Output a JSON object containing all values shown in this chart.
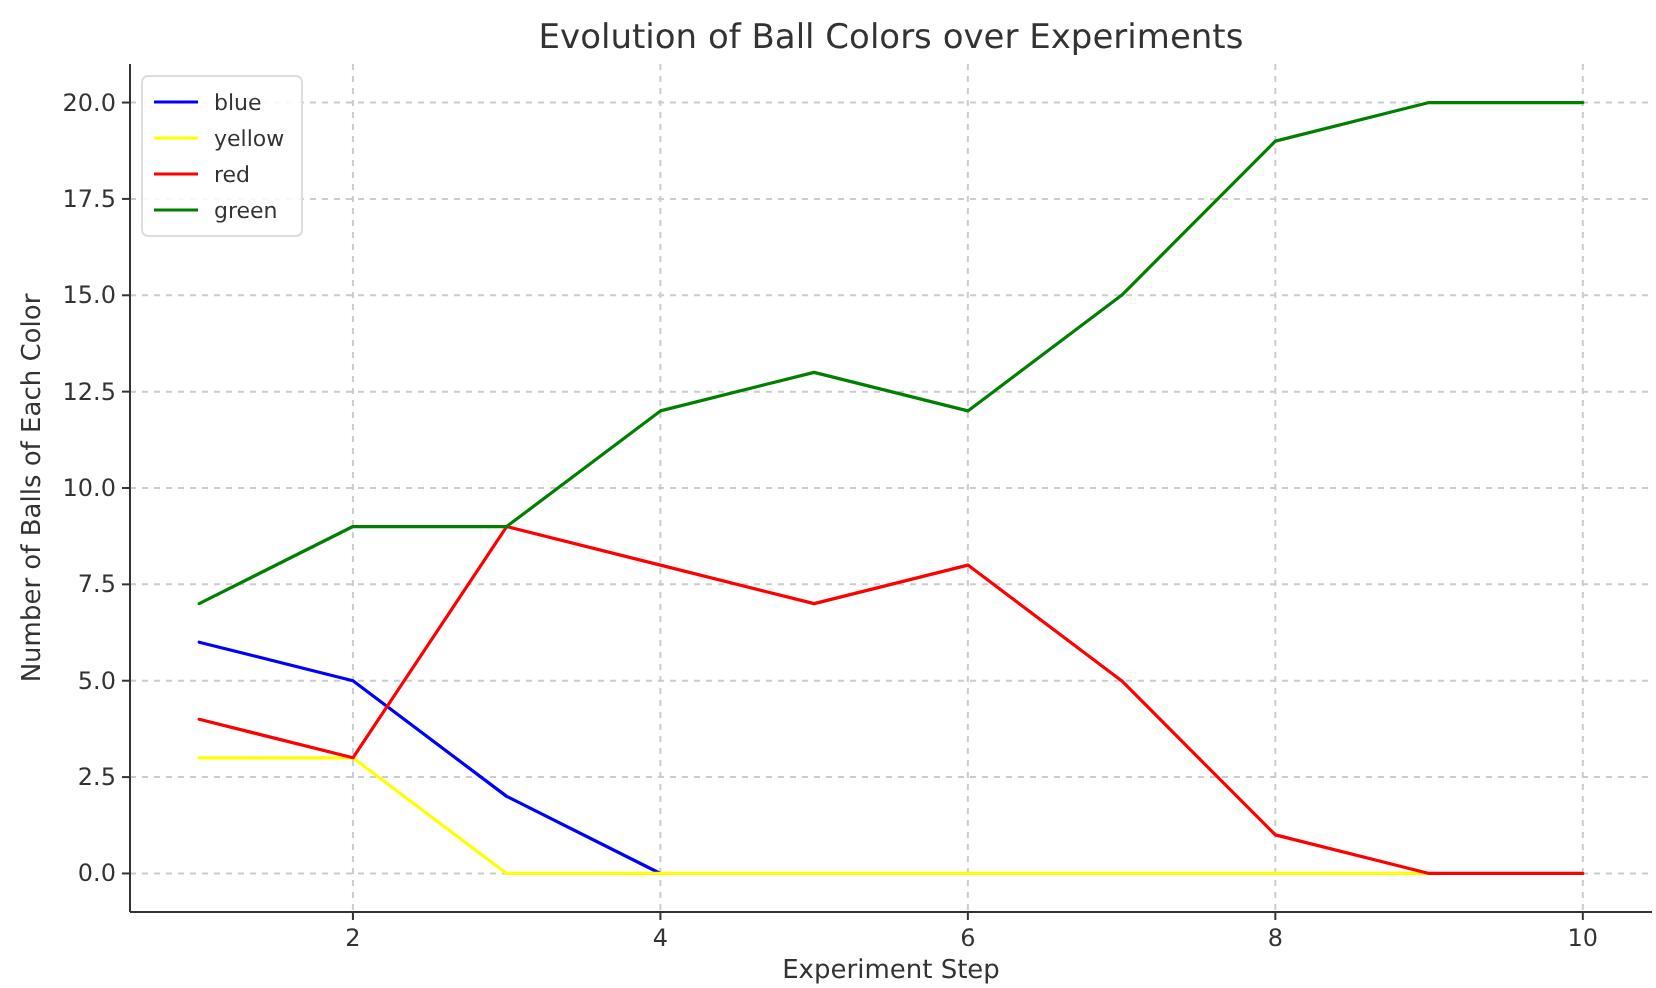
{
  "chart_data": {
    "type": "line",
    "title": "Evolution of Ball Colors over Experiments",
    "xlabel": "Experiment Step",
    "ylabel": "Number of Balls of Each Color",
    "x": [
      1,
      2,
      3,
      4,
      5,
      6,
      7,
      8,
      9,
      10
    ],
    "series": [
      {
        "name": "blue",
        "color": "#0000ff",
        "values": [
          6,
          5,
          2,
          0,
          null,
          null,
          null,
          null,
          null,
          null
        ]
      },
      {
        "name": "yellow",
        "color": "#ffff00",
        "values": [
          3,
          3,
          0,
          0,
          0,
          0,
          0,
          0,
          0,
          null
        ]
      },
      {
        "name": "red",
        "color": "#ff0000",
        "values": [
          4,
          3,
          9,
          8,
          7,
          8,
          5,
          1,
          0,
          0
        ]
      },
      {
        "name": "green",
        "color": "#008000",
        "values": [
          7,
          9,
          9,
          12,
          13,
          12,
          15,
          19,
          20,
          20
        ]
      }
    ],
    "xlim": [
      0.55,
      10.45
    ],
    "xticks": [
      2,
      4,
      6,
      8,
      10
    ],
    "ylim": [
      -1,
      21
    ],
    "yticks": [
      {
        "value": 0,
        "label": "0.0"
      },
      {
        "value": 2.5,
        "label": "2.5"
      },
      {
        "value": 5,
        "label": "5.0"
      },
      {
        "value": 7.5,
        "label": "7.5"
      },
      {
        "value": 10,
        "label": "10.0"
      },
      {
        "value": 12.5,
        "label": "12.5"
      },
      {
        "value": 15,
        "label": "15.0"
      },
      {
        "value": 17.5,
        "label": "17.5"
      },
      {
        "value": 20,
        "label": "20.0"
      }
    ],
    "grid": true,
    "legend": "top left",
    "marker": "none",
    "line_style": "solid"
  }
}
